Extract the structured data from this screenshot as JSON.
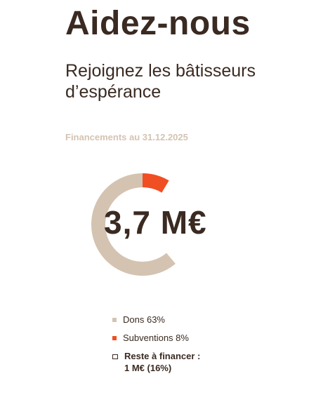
{
  "header": {
    "title": "Aidez-nous",
    "subtitle": "Rejoignez les bâtisseurs d’espérance"
  },
  "chart_caption": "Financements au 31.12.2025",
  "chart_center_value": "3,7 M€",
  "colors": {
    "text": "#3a2a21",
    "dons": "#d4c3b1",
    "subventions": "#f04e23",
    "caption": "#d4c3b1"
  },
  "chart_data": {
    "type": "pie",
    "series": [
      {
        "name": "Dons 63%",
        "value": 63,
        "color": "#d4c3b1"
      },
      {
        "name": "Subventions 8%",
        "value": 8,
        "color": "#f04e23"
      },
      {
        "name": "Reste à financer : 1 M€ (16%)",
        "value": 16,
        "color": "#ffffff"
      }
    ]
  },
  "legend": [
    {
      "label": "Dons 63%"
    },
    {
      "label": "Subventions 8%"
    },
    {
      "label": "Reste à financer :",
      "label2": "1 M€ (16%)"
    }
  ]
}
